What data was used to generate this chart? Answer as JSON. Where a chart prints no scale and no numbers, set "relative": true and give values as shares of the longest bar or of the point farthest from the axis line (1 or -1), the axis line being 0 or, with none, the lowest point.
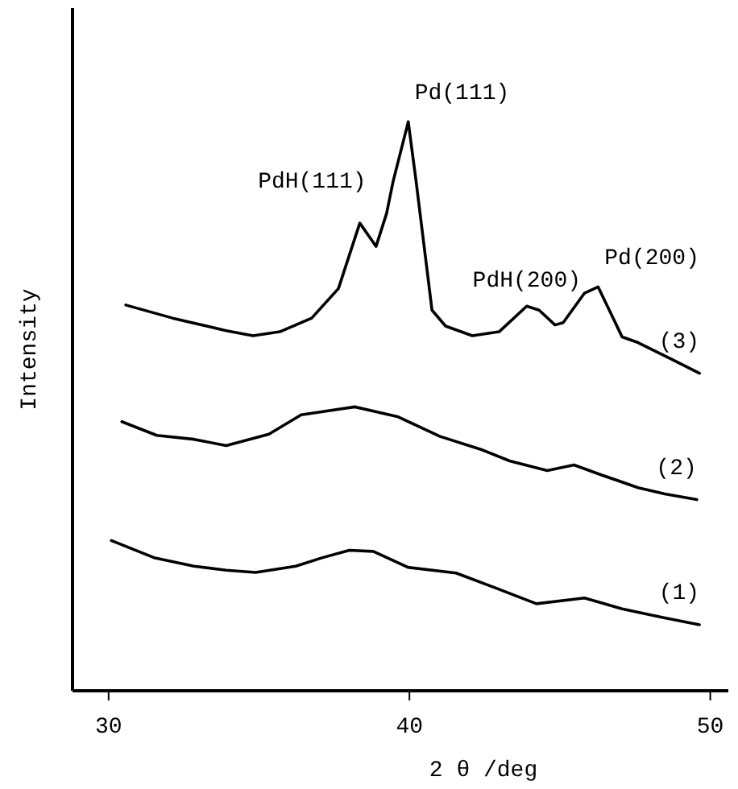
{
  "chart_data": {
    "type": "line",
    "relative": true,
    "xlabel": "2 θ /deg",
    "ylabel": "Intensity",
    "xlim": [
      28.8,
      50.6
    ],
    "xticks": [
      30,
      40,
      50
    ],
    "grid": false,
    "legend": false,
    "marker": "none",
    "line_style": "solid",
    "series": [
      {
        "name": "(3)",
        "color": "#000000",
        "x": [
          30.57,
          32.13,
          33.91,
          34.8,
          35.69,
          36.75,
          37.64,
          38.35,
          38.89,
          39.24,
          39.46,
          39.96,
          40.22,
          40.75,
          41.2,
          42.09,
          42.98,
          43.9,
          44.31,
          44.84,
          45.11,
          45.82,
          46.27,
          47.07,
          47.6,
          48.67,
          49.64
        ],
        "values": [
          0.678,
          0.655,
          0.633,
          0.624,
          0.631,
          0.655,
          0.707,
          0.822,
          0.781,
          0.839,
          0.896,
          1.0,
          0.896,
          0.669,
          0.641,
          0.624,
          0.631,
          0.676,
          0.669,
          0.643,
          0.647,
          0.699,
          0.71,
          0.622,
          0.612,
          0.584,
          0.558
        ]
      },
      {
        "name": "(2)",
        "color": "#000000",
        "x": [
          30.44,
          31.6,
          32.84,
          33.91,
          35.33,
          36.4,
          38.18,
          39.6,
          41.02,
          42.44,
          43.33,
          44.58,
          45.47,
          46.35,
          47.6,
          48.49,
          49.55
        ],
        "values": [
          0.473,
          0.449,
          0.442,
          0.431,
          0.451,
          0.485,
          0.499,
          0.482,
          0.447,
          0.423,
          0.404,
          0.387,
          0.397,
          0.38,
          0.357,
          0.346,
          0.336
        ]
      },
      {
        "name": "(1)",
        "color": "#000000",
        "x": [
          30.09,
          31.51,
          32.84,
          33.91,
          34.89,
          36.22,
          37.11,
          38.0,
          38.8,
          39.95,
          41.55,
          42.8,
          44.22,
          45.82,
          47.07,
          48.49,
          49.64
        ],
        "values": [
          0.264,
          0.234,
          0.219,
          0.212,
          0.208,
          0.219,
          0.234,
          0.247,
          0.245,
          0.217,
          0.207,
          0.182,
          0.153,
          0.163,
          0.144,
          0.128,
          0.116
        ]
      }
    ],
    "annotations": [
      {
        "text": "PdH(111)",
        "x": 38.35,
        "y": 0.822
      },
      {
        "text": "Pd(111)",
        "x": 39.96,
        "y": 1.0
      },
      {
        "text": "PdH(200)",
        "x": 43.9,
        "y": 0.676
      },
      {
        "text": "Pd(200)",
        "x": 46.27,
        "y": 0.71
      }
    ]
  }
}
